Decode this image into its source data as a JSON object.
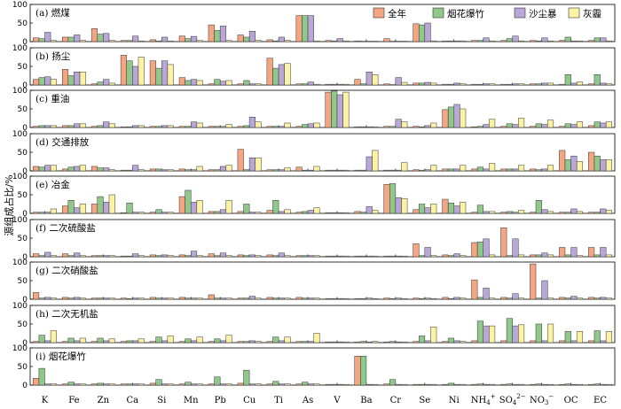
{
  "chart_data": {
    "type": "bar",
    "ylabel": "源组成占比/%",
    "ylim": [
      0,
      100
    ],
    "yticks": [
      "0",
      "50",
      "100"
    ],
    "categories": [
      "K",
      "Fe",
      "Zn",
      "Ca",
      "Si",
      "Mn",
      "Pb",
      "Cu",
      "Ti",
      "As",
      "V",
      "Ba",
      "Cr",
      "Se",
      "Ni",
      "NH4+",
      "SO42-",
      "NO3-",
      "OC",
      "EC"
    ],
    "category_labels": [
      {
        "main": "K"
      },
      {
        "main": "Fe"
      },
      {
        "main": "Zn"
      },
      {
        "main": "Ca"
      },
      {
        "main": "Si"
      },
      {
        "main": "Mn"
      },
      {
        "main": "Pb"
      },
      {
        "main": "Cu"
      },
      {
        "main": "Ti"
      },
      {
        "main": "As"
      },
      {
        "main": "V"
      },
      {
        "main": "Ba"
      },
      {
        "main": "Cr"
      },
      {
        "main": "Se"
      },
      {
        "main": "Ni"
      },
      {
        "main": "NH",
        "sub": "4",
        "sup": "+"
      },
      {
        "main": "SO",
        "sub": "4",
        "sup": "2−"
      },
      {
        "main": "NO",
        "sub": "3",
        "sup": "−"
      },
      {
        "main": "OC"
      },
      {
        "main": "EC"
      }
    ],
    "series_names": [
      "全年",
      "烟花爆竹",
      "沙尘暴",
      "灰霾"
    ],
    "colors": [
      "#f4a582",
      "#8fc88a",
      "#b9a7d8",
      "#fbf3a3"
    ],
    "legend_location": "top-right of panel (a)",
    "panels": [
      {
        "label": "(a) 燃煤",
        "series": [
          [
            10,
            12,
            35,
            3,
            5,
            15,
            45,
            18,
            5,
            70,
            3,
            2,
            8,
            48,
            2,
            3,
            3,
            3,
            3,
            3
          ],
          [
            8,
            12,
            20,
            3,
            2,
            8,
            30,
            12,
            2,
            70,
            2,
            1,
            1,
            45,
            2,
            3,
            8,
            2,
            12,
            10
          ],
          [
            25,
            18,
            22,
            15,
            12,
            14,
            42,
            28,
            12,
            70,
            8,
            1,
            1,
            50,
            2,
            10,
            15,
            10,
            2,
            10
          ],
          [
            3,
            3,
            3,
            2,
            2,
            3,
            3,
            3,
            3,
            2,
            2,
            1,
            1,
            2,
            2,
            2,
            2,
            2,
            2,
            2
          ]
        ]
      },
      {
        "label": "(b) 扬尘",
        "series": [
          [
            15,
            42,
            3,
            80,
            65,
            20,
            3,
            3,
            72,
            3,
            2,
            15,
            3,
            5,
            2,
            2,
            2,
            3,
            2,
            3
          ],
          [
            20,
            25,
            8,
            65,
            45,
            12,
            15,
            12,
            45,
            3,
            2,
            3,
            1,
            5,
            2,
            2,
            2,
            3,
            28,
            28
          ],
          [
            22,
            35,
            15,
            50,
            65,
            15,
            10,
            3,
            55,
            8,
            2,
            35,
            20,
            7,
            5,
            3,
            3,
            5,
            5,
            5
          ],
          [
            15,
            35,
            5,
            75,
            55,
            12,
            12,
            3,
            58,
            2,
            2,
            28,
            7,
            5,
            3,
            3,
            3,
            5,
            8,
            3
          ]
        ]
      },
      {
        "label": "(c) 重油",
        "series": [
          [
            3,
            5,
            3,
            2,
            3,
            3,
            3,
            3,
            3,
            3,
            95,
            2,
            3,
            3,
            48,
            2,
            3,
            3,
            3,
            5
          ],
          [
            5,
            5,
            5,
            2,
            3,
            3,
            3,
            5,
            3,
            8,
            98,
            2,
            3,
            2,
            55,
            3,
            10,
            10,
            10,
            15
          ],
          [
            5,
            10,
            15,
            5,
            5,
            15,
            3,
            28,
            3,
            10,
            88,
            2,
            22,
            5,
            62,
            8,
            8,
            8,
            8,
            12
          ],
          [
            5,
            10,
            10,
            5,
            5,
            12,
            8,
            15,
            12,
            12,
            95,
            2,
            15,
            12,
            50,
            22,
            25,
            20,
            15,
            15
          ]
        ]
      },
      {
        "label": "(d) 交通排放",
        "series": [
          [
            12,
            5,
            12,
            2,
            5,
            5,
            3,
            58,
            3,
            10,
            2,
            2,
            2,
            3,
            5,
            5,
            5,
            5,
            55,
            50
          ],
          [
            10,
            10,
            8,
            2,
            5,
            3,
            3,
            3,
            3,
            2,
            2,
            2,
            2,
            2,
            5,
            10,
            5,
            3,
            30,
            40
          ],
          [
            15,
            12,
            8,
            15,
            3,
            3,
            12,
            35,
            3,
            2,
            2,
            38,
            2,
            3,
            5,
            5,
            5,
            5,
            40,
            30
          ],
          [
            15,
            15,
            3,
            3,
            3,
            12,
            15,
            35,
            8,
            12,
            2,
            55,
            22,
            15,
            15,
            20,
            15,
            15,
            25,
            30
          ]
        ]
      },
      {
        "label": "(e) 冶金",
        "series": [
          [
            3,
            20,
            25,
            2,
            3,
            45,
            5,
            5,
            8,
            3,
            2,
            5,
            78,
            10,
            38,
            3,
            3,
            3,
            3,
            3
          ],
          [
            3,
            35,
            45,
            28,
            10,
            62,
            5,
            25,
            35,
            5,
            2,
            3,
            80,
            25,
            28,
            22,
            5,
            35,
            3,
            3
          ],
          [
            3,
            15,
            30,
            3,
            3,
            30,
            10,
            3,
            5,
            8,
            2,
            18,
            42,
            15,
            20,
            5,
            3,
            10,
            12,
            12
          ],
          [
            12,
            25,
            50,
            3,
            3,
            35,
            35,
            3,
            10,
            15,
            2,
            8,
            40,
            25,
            30,
            5,
            8,
            5,
            5,
            8
          ]
        ]
      },
      {
        "label": "(f) 二次硫酸盐",
        "series": [
          [
            8,
            8,
            3,
            2,
            5,
            5,
            8,
            5,
            5,
            3,
            2,
            2,
            2,
            35,
            5,
            38,
            78,
            5,
            25,
            25
          ],
          [
            3,
            3,
            3,
            2,
            3,
            3,
            3,
            3,
            3,
            3,
            2,
            2,
            2,
            3,
            3,
            40,
            3,
            5,
            5,
            5
          ],
          [
            12,
            10,
            3,
            8,
            5,
            15,
            10,
            5,
            10,
            3,
            2,
            2,
            2,
            25,
            8,
            48,
            48,
            10,
            25,
            25
          ],
          [
            3,
            3,
            3,
            3,
            3,
            3,
            3,
            3,
            3,
            3,
            2,
            2,
            2,
            3,
            3,
            5,
            5,
            5,
            3,
            5
          ]
        ]
      },
      {
        "label": "(g) 二次硝酸盐",
        "series": [
          [
            18,
            5,
            3,
            3,
            5,
            5,
            12,
            3,
            5,
            5,
            2,
            2,
            3,
            3,
            5,
            52,
            5,
            95,
            5,
            5
          ],
          [
            3,
            3,
            3,
            2,
            3,
            3,
            3,
            3,
            3,
            3,
            2,
            2,
            2,
            2,
            2,
            5,
            3,
            3,
            3,
            3
          ],
          [
            5,
            5,
            3,
            3,
            3,
            3,
            3,
            8,
            3,
            3,
            2,
            3,
            3,
            3,
            5,
            30,
            15,
            50,
            8,
            5
          ],
          [
            3,
            3,
            3,
            3,
            3,
            3,
            3,
            3,
            3,
            3,
            2,
            2,
            2,
            2,
            3,
            3,
            3,
            3,
            3,
            3
          ]
        ]
      },
      {
        "label": "(h) 二次无机盐",
        "series": [
          [
            3,
            3,
            3,
            3,
            3,
            3,
            3,
            3,
            3,
            3,
            2,
            2,
            2,
            3,
            3,
            5,
            5,
            5,
            5,
            5
          ],
          [
            20,
            12,
            12,
            5,
            15,
            10,
            10,
            3,
            15,
            3,
            2,
            3,
            3,
            18,
            12,
            58,
            65,
            50,
            30,
            32
          ],
          [
            5,
            5,
            5,
            5,
            5,
            5,
            5,
            5,
            5,
            3,
            2,
            2,
            2,
            5,
            5,
            45,
            45,
            5,
            5,
            5
          ],
          [
            32,
            12,
            10,
            10,
            18,
            15,
            20,
            3,
            15,
            25,
            2,
            3,
            2,
            42,
            3,
            45,
            48,
            50,
            30,
            30
          ]
        ]
      },
      {
        "label": "(i) 烟花爆竹",
        "series": [
          [
            18,
            3,
            3,
            3,
            5,
            3,
            3,
            5,
            3,
            3,
            2,
            78,
            3,
            2,
            2,
            2,
            2,
            2,
            2,
            2
          ],
          [
            45,
            8,
            5,
            3,
            15,
            8,
            22,
            40,
            10,
            8,
            2,
            78,
            15,
            2,
            5,
            3,
            3,
            3,
            3,
            3
          ],
          [
            3,
            3,
            3,
            3,
            3,
            3,
            3,
            3,
            3,
            3,
            2,
            2,
            2,
            2,
            2,
            2,
            2,
            2,
            2,
            2
          ],
          [
            3,
            3,
            3,
            3,
            3,
            3,
            3,
            3,
            3,
            3,
            2,
            2,
            2,
            2,
            2,
            2,
            2,
            2,
            2,
            2
          ]
        ]
      }
    ]
  }
}
